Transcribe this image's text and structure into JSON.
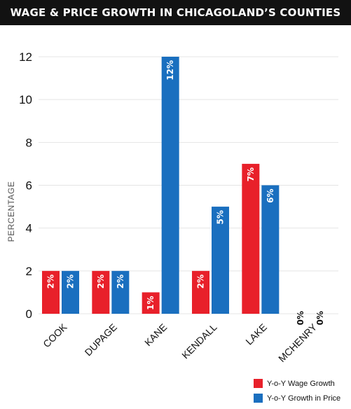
{
  "header": {
    "title": "WAGE & PRICE GROWTH IN CHICAGOLAND’S COUNTIES"
  },
  "chart_data": {
    "type": "bar",
    "title": "WAGE & PRICE GROWTH IN CHICAGOLAND’S COUNTIES",
    "xlabel": "",
    "ylabel": "PERCENTAGE",
    "categories": [
      "COOK",
      "DUPAGE",
      "KANE",
      "KENDALL",
      "LAKE",
      "MCHENRY"
    ],
    "series": [
      {
        "name": "Y-o-Y Wage Growth",
        "color": "#e8202a",
        "values": [
          2,
          2,
          1,
          2,
          7,
          0
        ],
        "labels": [
          "2%",
          "2%",
          "1%",
          "2%",
          "7%",
          "0%"
        ]
      },
      {
        "name": "Y-o-Y Growth in Price",
        "color": "#1a6fbf",
        "values": [
          2,
          2,
          12,
          5,
          6,
          0
        ],
        "labels": [
          "2%",
          "2%",
          "12%",
          "5%",
          "6%",
          "0%"
        ]
      }
    ],
    "ylim": [
      0,
      12
    ],
    "yticks": [
      0,
      2,
      4,
      6,
      8,
      10,
      12
    ],
    "grid": true,
    "legend_position": "bottom-right"
  }
}
